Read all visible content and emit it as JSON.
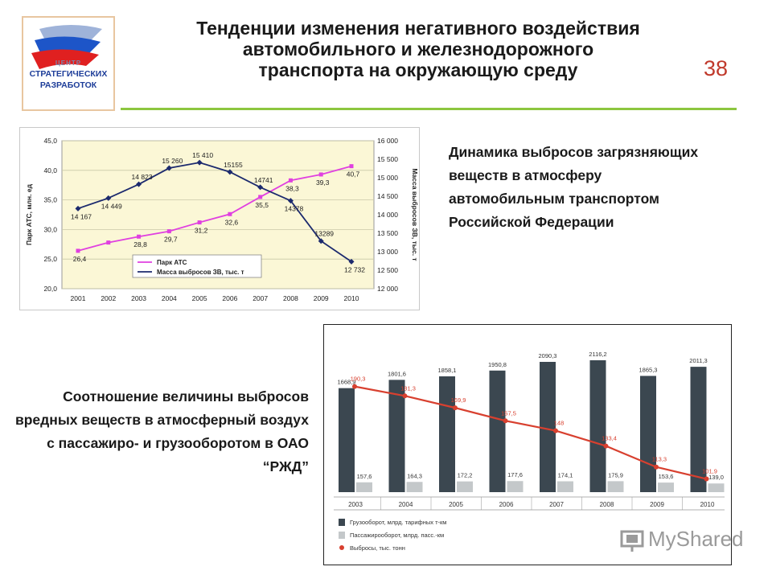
{
  "logo": {
    "line1": "ЦЕНТР",
    "line2": "СТРАТЕГИЧЕСКИХ",
    "line3": "РАЗРАБОТОК"
  },
  "title": {
    "line1": "Тенденции изменения негативного воздействия",
    "line2": "автомобильного и железнодорожного",
    "line3": "транспорта на окружающую среду"
  },
  "slide_number": "38",
  "text_blocks": {
    "top_right": "Динамика выбросов загрязняющих веществ в атмосферу автомобильным транспортом Российской Федерации",
    "bottom_left": "Соотношение величины выбросов вредных веществ в атмосферный воздух с пассажиро- и грузооборотом в ОАО “РЖД”"
  },
  "watermark": "MyShared",
  "colors": {
    "accent_line": "#8cc63f",
    "slide_number": "#c0392b",
    "park_ats": "#e040e0",
    "emissions_auto": "#1c2a6e",
    "freight_bar": "#3b4750",
    "passenger_bar": "#c4c8ca",
    "emissions_rail": "#d8402f"
  },
  "chart_data": [
    {
      "type": "line",
      "x": [
        "2001",
        "2002",
        "2003",
        "2004",
        "2005",
        "2006",
        "2007",
        "2008",
        "2009",
        "2010"
      ],
      "series": [
        {
          "name": "Парк АТС",
          "axis": "left",
          "values": [
            26.4,
            27.8,
            28.8,
            29.7,
            31.2,
            32.6,
            35.5,
            38.3,
            39.3,
            40.7
          ],
          "labels": [
            "26,4",
            "",
            "28,8",
            "29,7",
            "31,2",
            "32,6",
            "35,5",
            "38,3",
            "39,3",
            "40,7"
          ]
        },
        {
          "name": "Масса выбросов ЗВ, тыс. т",
          "axis": "right",
          "values": [
            14167,
            14449,
            14823,
            15260,
            15410,
            15155,
            14741,
            14378,
            13289,
            12732
          ],
          "labels": [
            "14 167",
            "14 449",
            "14 823",
            "15 260",
            "15 410",
            "15155",
            "14741",
            "14378",
            "13289",
            "12 732"
          ]
        }
      ],
      "ylabel": "Парк АТС, млн. ед",
      "y2label": "Масса выбросов ЗВ, тыс. т",
      "yticks": [
        "20,0",
        "25,0",
        "30,0",
        "35,0",
        "40,0",
        "45,0"
      ],
      "ylim": [
        20,
        45
      ],
      "y2ticks": [
        "12 000",
        "12 500",
        "13 000",
        "13 500",
        "14 000",
        "14 500",
        "15 000",
        "15 500",
        "16 000"
      ],
      "y2lim": [
        12000,
        16000
      ],
      "grid": true,
      "legend_position": "bottom-left"
    },
    {
      "type": "bar",
      "categories": [
        "2003",
        "2004",
        "2005",
        "2006",
        "2007",
        "2008",
        "2009",
        "2010"
      ],
      "series": [
        {
          "name": "Грузооборот, млрд. тарифных т-км",
          "values": [
            1668.9,
            1801.6,
            1858.1,
            1950.8,
            2090.3,
            2116.2,
            1865.3,
            2011.3
          ],
          "labels": [
            "1668,9",
            "1801,6",
            "1858,1",
            "1950,8",
            "2090,3",
            "2116,2",
            "1865,3",
            "2011,3"
          ]
        },
        {
          "name": "Пассажирооборот, млрд. пасс.-км",
          "values": [
            157.6,
            164.3,
            172.2,
            177.6,
            174.1,
            175.9,
            153.6,
            139.0
          ],
          "labels": [
            "157,6",
            "164,3",
            "172,2",
            "177,6",
            "174,1",
            "175,9",
            "153,6",
            "139,0"
          ]
        },
        {
          "name": "Выбросы, тыс. тонн",
          "kind": "line",
          "values": [
            190.3,
            181.3,
            169.9,
            157.5,
            148,
            133.4,
            113.3,
            101.9
          ],
          "labels": [
            "190,3",
            "181,3",
            "169,9",
            "157,5",
            "148",
            "133,4",
            "113,3",
            "101,9"
          ]
        }
      ],
      "legend_position": "bottom-left"
    }
  ]
}
